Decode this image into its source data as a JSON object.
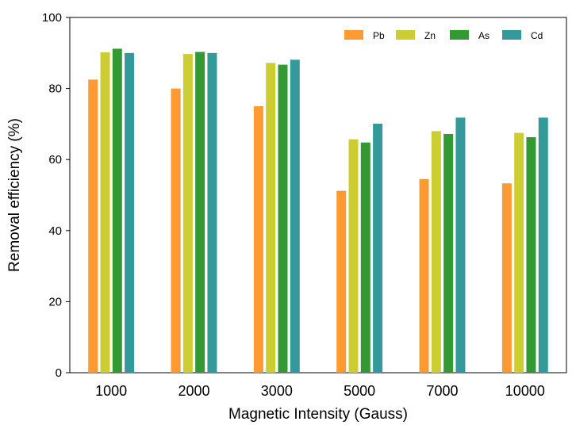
{
  "chart_data": {
    "type": "bar",
    "title": "",
    "xlabel": "Magnetic Intensity (Gauss)",
    "ylabel": "Removal efficiency (%)",
    "ylim": [
      0,
      100
    ],
    "yticks": [
      "0",
      "20",
      "40",
      "60",
      "80",
      "100"
    ],
    "categories": [
      "1000",
      "2000",
      "3000",
      "5000",
      "7000",
      "10000"
    ],
    "legend_position": "top-right",
    "grid": false,
    "series": [
      {
        "name": "Pb",
        "color": "#FF9A33",
        "values": [
          82.5,
          80,
          75,
          51.2,
          54.5,
          53.3
        ]
      },
      {
        "name": "Zn",
        "color": "#CCCC33",
        "values": [
          90.2,
          89.7,
          87.2,
          65.7,
          68,
          67.5
        ]
      },
      {
        "name": "As",
        "color": "#339933",
        "values": [
          91.2,
          90.3,
          86.7,
          64.8,
          67.2,
          66.3
        ]
      },
      {
        "name": "Cd",
        "color": "#339999",
        "values": [
          90,
          90,
          88.1,
          70.1,
          71.8,
          71.8
        ]
      }
    ]
  }
}
